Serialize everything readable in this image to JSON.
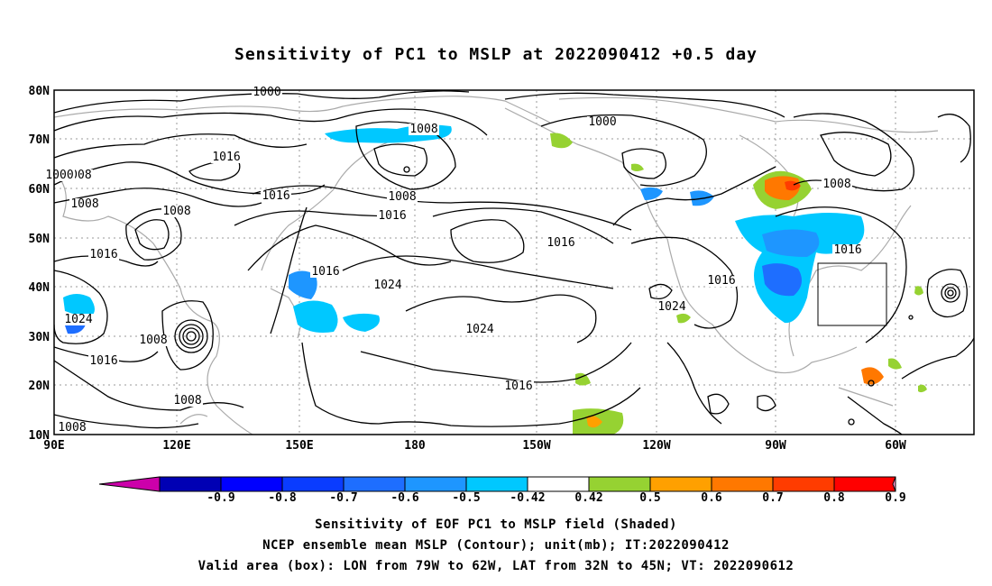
{
  "title": "Sensitivity of PC1 to MSLP at 2022090412 +0.5 day",
  "map": {
    "lon_ticks": [
      "90E",
      "120E",
      "150E",
      "180",
      "150W",
      "120W",
      "90W",
      "60W"
    ],
    "lat_ticks": [
      "80N",
      "70N",
      "60N",
      "50N",
      "40N",
      "30N",
      "20N",
      "10N"
    ],
    "lon_range": [
      "90E",
      "50W"
    ],
    "lat_range": [
      "10N",
      "80N"
    ],
    "grid": "dotted",
    "valid_box": {
      "lon_from": "79W",
      "lon_to": "62W",
      "lat_from": "32N",
      "lat_to": "45N"
    },
    "contour_labels": [
      "1000",
      "1008",
      "1000",
      "1016",
      "1016",
      "1008",
      "1008",
      "1016",
      "1016",
      "1008",
      "1016",
      "1024",
      "1024",
      "1008",
      "1008",
      "1016",
      "1024",
      "1016",
      "1008",
      "1008",
      "1016",
      "1024",
      "1016",
      "1016",
      "1008",
      "1000"
    ]
  },
  "colorbar": {
    "labels": [
      "-0.9",
      "-0.8",
      "-0.7",
      "-0.6",
      "-0.5",
      "-0.42",
      "0.42",
      "0.5",
      "0.6",
      "0.7",
      "0.8",
      "0.9"
    ],
    "colors": [
      "#cc00aa",
      "#0000b4",
      "#0000ff",
      "#0a3cff",
      "#1e6eff",
      "#1e96ff",
      "#00c8ff",
      "#ffffff",
      "#96d232",
      "#ffa000",
      "#ff7800",
      "#ff3c00",
      "#ff0000",
      "#ff99cc"
    ]
  },
  "captions": {
    "line1": "Sensitivity of EOF PC1 to MSLP field (Shaded)",
    "line2": "NCEP ensemble mean MSLP (Contour); unit(mb); IT:2022090412",
    "line3": "Valid area (box): LON from 79W to 62W, LAT from 32N to 45N; VT: 2022090612"
  }
}
